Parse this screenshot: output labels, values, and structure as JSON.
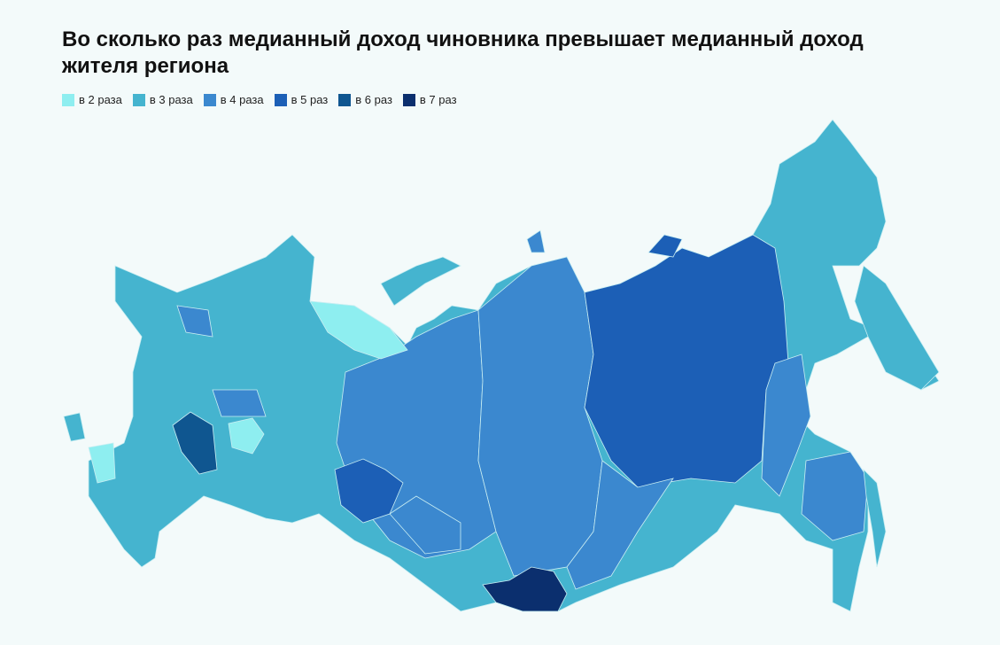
{
  "title": "Во сколько раз медианный доход чиновника превышает медианный доход жителя региона",
  "legend": [
    {
      "label": "в 2 раза",
      "color": "#8eeef0"
    },
    {
      "label": "в 3 раза",
      "color": "#45b4cf"
    },
    {
      "label": "в 4 раза",
      "color": "#3b88cf"
    },
    {
      "label": "в 5 раз",
      "color": "#1c5fb6"
    },
    {
      "label": "в 6 раз",
      "color": "#0f5690"
    },
    {
      "label": "в 7 раз",
      "color": "#0b2f6e"
    }
  ]
}
